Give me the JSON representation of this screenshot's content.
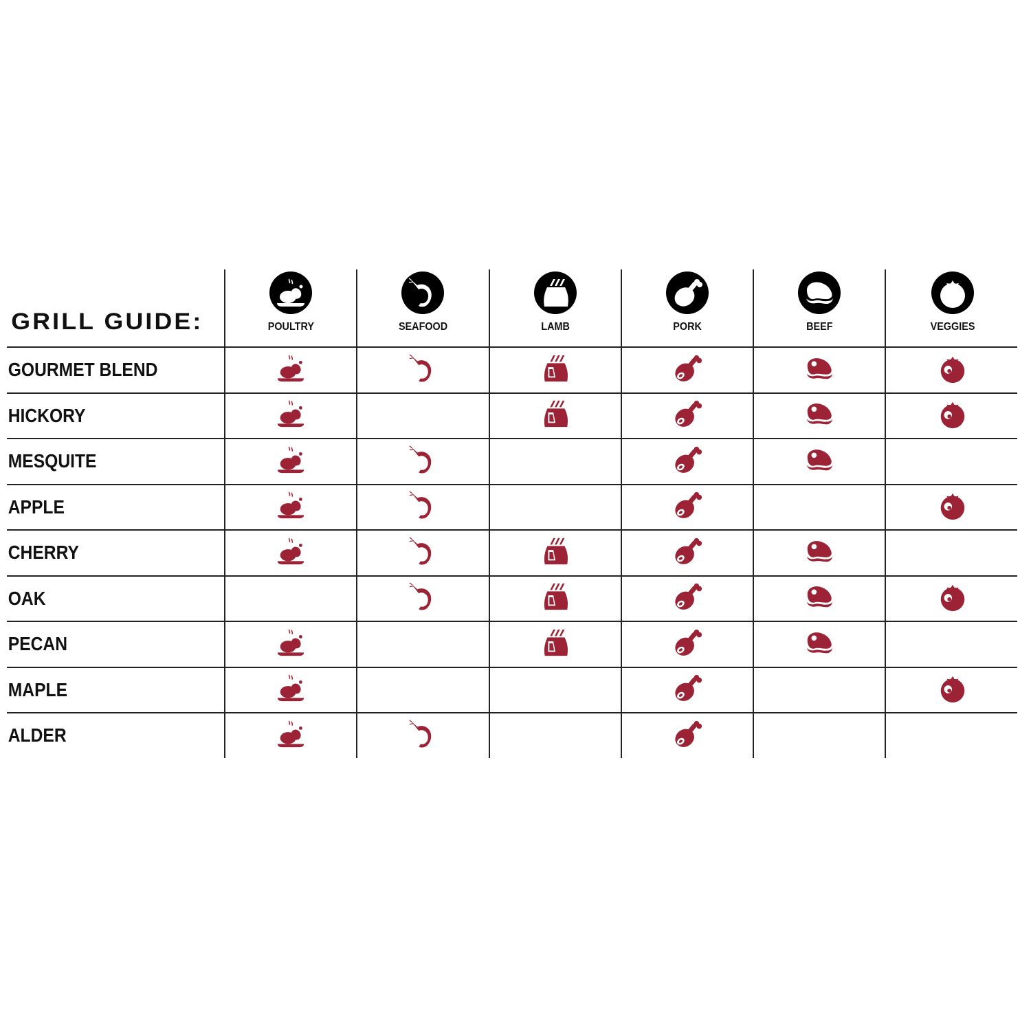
{
  "title": "GRILL GUIDE:",
  "colors": {
    "icon_red": "#9b2335",
    "line": "#222222",
    "header_circle": "#000000"
  },
  "columns": [
    {
      "label": "POULTRY",
      "icon": "poultry-icon"
    },
    {
      "label": "SEAFOOD",
      "icon": "shrimp-icon"
    },
    {
      "label": "LAMB",
      "icon": "lamb-icon"
    },
    {
      "label": "PORK",
      "icon": "ham-icon"
    },
    {
      "label": "BEEF",
      "icon": "steak-icon"
    },
    {
      "label": "VEGGIES",
      "icon": "tomato-icon"
    }
  ],
  "rows": [
    {
      "label": "GOURMET BLEND",
      "marks": [
        true,
        true,
        true,
        true,
        true,
        true
      ]
    },
    {
      "label": "HICKORY",
      "marks": [
        true,
        false,
        true,
        true,
        true,
        true
      ]
    },
    {
      "label": "MESQUITE",
      "marks": [
        true,
        true,
        false,
        true,
        true,
        false
      ]
    },
    {
      "label": "APPLE",
      "marks": [
        true,
        true,
        false,
        true,
        false,
        true
      ]
    },
    {
      "label": "CHERRY",
      "marks": [
        true,
        true,
        true,
        true,
        true,
        false
      ]
    },
    {
      "label": "OAK",
      "marks": [
        false,
        true,
        true,
        true,
        true,
        true
      ]
    },
    {
      "label": "PECAN",
      "marks": [
        true,
        false,
        true,
        true,
        true,
        false
      ]
    },
    {
      "label": "MAPLE",
      "marks": [
        true,
        false,
        false,
        true,
        false,
        true
      ]
    },
    {
      "label": "ALDER",
      "marks": [
        true,
        true,
        false,
        true,
        false,
        false
      ]
    }
  ]
}
